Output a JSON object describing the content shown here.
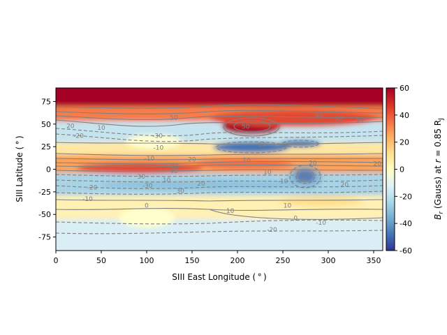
{
  "chart_data": {
    "type": "heatmap",
    "xlabel": "SIII East Longitude ( ° )",
    "ylabel": "SIII Latitude ( ° )",
    "xlim": [
      0,
      360
    ],
    "ylim": [
      -90,
      90
    ],
    "x_ticks": [
      0,
      50,
      100,
      150,
      200,
      250,
      300,
      350
    ],
    "y_ticks": [
      -75,
      -50,
      -25,
      0,
      25,
      50,
      75
    ],
    "colormap": "RdYlBu_r",
    "colorbar": {
      "label_main": "B",
      "label_sub_r": "r",
      "label_rest": " (Gauss) at ",
      "label_r": "r",
      "label_eq": " = 0.85 R",
      "label_sub_j": "J",
      "range": [
        -60,
        60
      ],
      "ticks": [
        -60,
        -40,
        -20,
        0,
        20,
        40,
        60
      ]
    },
    "contour_labels": [
      {
        "text": "50",
        "lon": 130,
        "lat": 57
      },
      {
        "text": "50",
        "lon": 209,
        "lat": 47
      },
      {
        "text": "40",
        "lon": 290,
        "lat": 60
      },
      {
        "text": "50",
        "lon": 312,
        "lat": 56
      },
      {
        "text": "50",
        "lon": 335,
        "lat": 55
      },
      {
        "text": "20",
        "lon": 16,
        "lat": 48
      },
      {
        "text": "-20",
        "lon": 25,
        "lat": 37
      },
      {
        "text": "10",
        "lon": 50,
        "lat": 46
      },
      {
        "text": "-30",
        "lon": 112,
        "lat": 37
      },
      {
        "text": "-10",
        "lon": 113,
        "lat": 24
      },
      {
        "text": "-10",
        "lon": 103,
        "lat": 12
      },
      {
        "text": "-20",
        "lon": 130,
        "lat": 3
      },
      {
        "text": "20",
        "lon": 150,
        "lat": 11
      },
      {
        "text": "40",
        "lon": 130,
        "lat": -2
      },
      {
        "text": "10",
        "lon": 210,
        "lat": 10
      },
      {
        "text": "10",
        "lon": 233,
        "lat": -3
      },
      {
        "text": "20",
        "lon": 283,
        "lat": 7
      },
      {
        "text": "20",
        "lon": 354,
        "lat": 6
      },
      {
        "text": "10",
        "lon": 227,
        "lat": 27
      },
      {
        "text": "40",
        "lon": 272,
        "lat": -12
      },
      {
        "text": "-20",
        "lon": 40,
        "lat": -20
      },
      {
        "text": "-30",
        "lon": 101,
        "lat": -18
      },
      {
        "text": "30",
        "lon": 94,
        "lat": -8
      },
      {
        "text": "10",
        "lon": 122,
        "lat": -12
      },
      {
        "text": "30",
        "lon": 137,
        "lat": -24
      },
      {
        "text": "20",
        "lon": 160,
        "lat": -16
      },
      {
        "text": "-10",
        "lon": 250,
        "lat": -13
      },
      {
        "text": "-10",
        "lon": 35,
        "lat": -33
      },
      {
        "text": "20",
        "lon": 318,
        "lat": -17
      },
      {
        "text": "0",
        "lon": 100,
        "lat": -40
      },
      {
        "text": "10",
        "lon": 192,
        "lat": -46
      },
      {
        "text": "10",
        "lon": 255,
        "lat": -40
      },
      {
        "text": "0",
        "lon": 264,
        "lat": -54
      },
      {
        "text": "-10",
        "lon": 292,
        "lat": -59
      },
      {
        "text": "-20",
        "lon": 238,
        "lat": -67
      }
    ]
  },
  "icons": {
    "heat_colors": [
      "#313695",
      "#4575b4",
      "#74add1",
      "#abd9e9",
      "#e0f3f8",
      "#ffffbf",
      "#fee090",
      "#fdae61",
      "#f46d43",
      "#d73027",
      "#a50026"
    ]
  }
}
